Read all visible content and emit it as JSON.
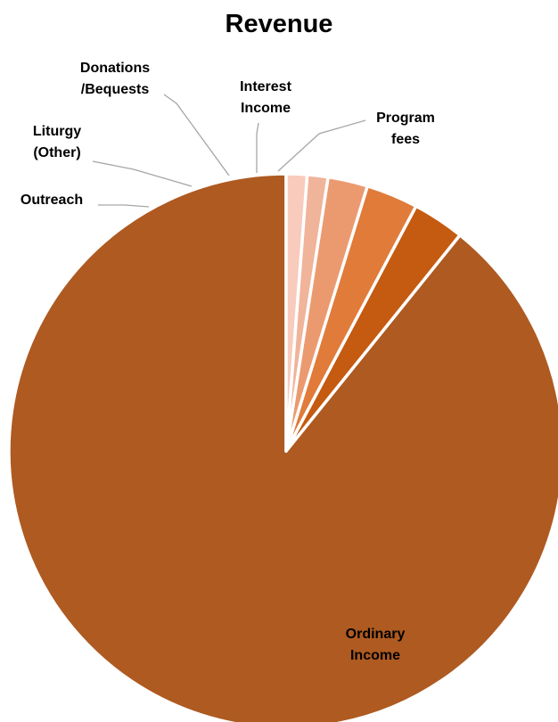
{
  "chart_data": {
    "type": "pie",
    "title": "Revenue",
    "slices": [
      {
        "name": "Ordinary Income",
        "label_lines": [
          "Ordinary",
          "Income"
        ],
        "value": 88.5,
        "color": "#ae5a21"
      },
      {
        "name": "Outreach",
        "label_lines": [
          "Outreach"
        ],
        "value": 3.0,
        "color": "#c55a11"
      },
      {
        "name": "Liturgy (Other)",
        "label_lines": [
          "Liturgy",
          "(Other)"
        ],
        "value": 3.0,
        "color": "#e07b39"
      },
      {
        "name": "Donations/Bequests",
        "label_lines": [
          "Donations",
          "/Bequests"
        ],
        "value": 2.3,
        "color": "#eb9a70"
      },
      {
        "name": "Interest Income",
        "label_lines": [
          "Interest",
          "Income"
        ],
        "value": 1.2,
        "color": "#f0b49a"
      },
      {
        "name": "Program fees",
        "label_lines": [
          "Program",
          "fees"
        ],
        "value": 1.2,
        "color": "#f8cbbd"
      }
    ],
    "start_angle_deg": 0,
    "direction": "counterclockwise",
    "slice_separator_color": "#ffffff",
    "leader_line_color": "#a6a6a6",
    "legend": "none"
  }
}
